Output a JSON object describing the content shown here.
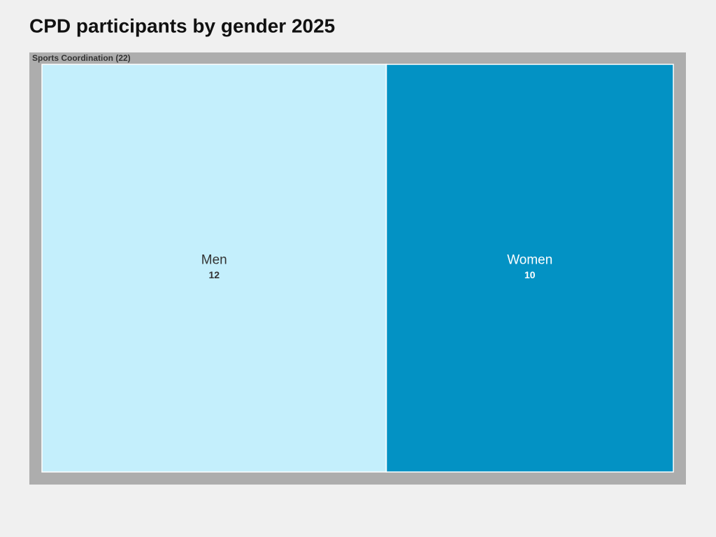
{
  "chart_data": {
    "type": "treemap",
    "title": "CPD participants by gender 2025",
    "group_label": "Sports Coordination (22)",
    "group_color": "#adadad",
    "categories": [
      "Men",
      "Women"
    ],
    "values": [
      12,
      10
    ],
    "colors": [
      "#c4effc",
      "#0392c4"
    ],
    "label_colors": [
      "#333333",
      "#ffffff"
    ]
  }
}
